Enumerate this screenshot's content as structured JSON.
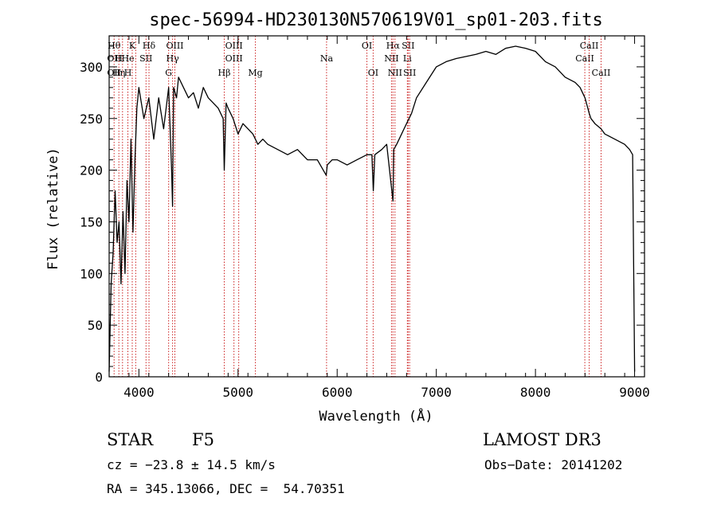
{
  "chart_data": {
    "type": "line",
    "title": "spec-56994-HD230130N570619V01_sp01-203.fits",
    "xlabel": "Wavelength (Å)",
    "ylabel": "Flux (relative)",
    "xlim": [
      3700,
      9100
    ],
    "ylim": [
      0,
      330
    ],
    "x_ticks": [
      4000,
      5000,
      6000,
      7000,
      8000,
      9000
    ],
    "y_ticks": [
      0,
      50,
      100,
      150,
      200,
      250,
      300
    ],
    "series": [
      {
        "name": "flux",
        "x": [
          3700,
          3720,
          3740,
          3760,
          3780,
          3800,
          3820,
          3840,
          3860,
          3880,
          3900,
          3920,
          3940,
          3960,
          3980,
          4000,
          4050,
          4100,
          4150,
          4200,
          4250,
          4300,
          4330,
          4340,
          4350,
          4380,
          4400,
          4450,
          4500,
          4550,
          4600,
          4650,
          4700,
          4750,
          4800,
          4850,
          4861,
          4880,
          4900,
          4950,
          5000,
          5050,
          5100,
          5150,
          5200,
          5250,
          5300,
          5400,
          5500,
          5600,
          5700,
          5800,
          5890,
          5900,
          5950,
          6000,
          6100,
          6200,
          6300,
          6350,
          6365,
          6380,
          6450,
          6500,
          6563,
          6570,
          6600,
          6650,
          6700,
          6750,
          6800,
          6900,
          7000,
          7100,
          7200,
          7300,
          7400,
          7500,
          7600,
          7700,
          7800,
          7900,
          8000,
          8100,
          8200,
          8300,
          8400,
          8450,
          8500,
          8542,
          8560,
          8600,
          8662,
          8700,
          8800,
          8900,
          8950,
          8980,
          9000
        ],
        "values": [
          5,
          90,
          120,
          180,
          130,
          150,
          90,
          160,
          100,
          190,
          150,
          230,
          140,
          210,
          260,
          280,
          250,
          270,
          230,
          270,
          240,
          280,
          200,
          165,
          280,
          270,
          290,
          280,
          270,
          275,
          260,
          280,
          270,
          265,
          260,
          250,
          200,
          265,
          260,
          250,
          235,
          245,
          240,
          235,
          225,
          230,
          225,
          220,
          215,
          220,
          210,
          210,
          195,
          205,
          210,
          210,
          205,
          210,
          215,
          215,
          180,
          215,
          220,
          225,
          170,
          220,
          225,
          235,
          245,
          255,
          270,
          285,
          300,
          305,
          308,
          310,
          312,
          315,
          312,
          318,
          320,
          318,
          315,
          305,
          300,
          290,
          285,
          280,
          270,
          255,
          250,
          245,
          240,
          235,
          230,
          225,
          220,
          215,
          5
        ]
      }
    ],
    "annotations": [
      {
        "wavelength": 3750,
        "lines": [
          "Hθ",
          "OII",
          "OII"
        ]
      },
      {
        "wavelength": 3798,
        "lines": [
          "",
          "H",
          "Hη"
        ]
      },
      {
        "wavelength": 3835,
        "lines": [
          "",
          "",
          ""
        ]
      },
      {
        "wavelength": 3889,
        "lines": [
          "",
          "He",
          "H"
        ]
      },
      {
        "wavelength": 3933,
        "lines": [
          "K",
          "",
          ""
        ]
      },
      {
        "wavelength": 3968,
        "lines": [
          "",
          "",
          ""
        ]
      },
      {
        "wavelength": 4072,
        "lines": [
          "",
          "SII",
          ""
        ]
      },
      {
        "wavelength": 4102,
        "lines": [
          "Hδ",
          "",
          ""
        ]
      },
      {
        "wavelength": 4300,
        "lines": [
          "",
          "",
          "G"
        ]
      },
      {
        "wavelength": 4340,
        "lines": [
          "",
          "Hγ",
          ""
        ]
      },
      {
        "wavelength": 4363,
        "lines": [
          "OIII",
          "",
          ""
        ]
      },
      {
        "wavelength": 4861,
        "lines": [
          "",
          "",
          "Hβ"
        ]
      },
      {
        "wavelength": 4959,
        "lines": [
          "OIII",
          "OIII",
          ""
        ]
      },
      {
        "wavelength": 5007,
        "lines": [
          "",
          "",
          ""
        ]
      },
      {
        "wavelength": 5175,
        "lines": [
          "",
          "",
          "Mg"
        ]
      },
      {
        "wavelength": 5893,
        "lines": [
          "",
          "Na",
          ""
        ]
      },
      {
        "wavelength": 6300,
        "lines": [
          "OI",
          "",
          ""
        ]
      },
      {
        "wavelength": 6363,
        "lines": [
          "",
          "",
          "OI"
        ]
      },
      {
        "wavelength": 6548,
        "lines": [
          "",
          "NII",
          ""
        ]
      },
      {
        "wavelength": 6563,
        "lines": [
          "Hα",
          "",
          ""
        ]
      },
      {
        "wavelength": 6583,
        "lines": [
          "",
          "",
          "NII"
        ]
      },
      {
        "wavelength": 6708,
        "lines": [
          "",
          "Li",
          ""
        ]
      },
      {
        "wavelength": 6716,
        "lines": [
          "SII",
          "",
          ""
        ]
      },
      {
        "wavelength": 6731,
        "lines": [
          "",
          "",
          "SII"
        ]
      },
      {
        "wavelength": 8498,
        "lines": [
          "",
          "CaII",
          ""
        ]
      },
      {
        "wavelength": 8542,
        "lines": [
          "CaII",
          "",
          ""
        ]
      },
      {
        "wavelength": 8662,
        "lines": [
          "",
          "",
          "CaII"
        ]
      }
    ],
    "annotation_color": "#cc2222",
    "line_color": "#000000"
  },
  "info": {
    "class": "STAR",
    "subclass": "F5",
    "survey": "LAMOST DR3",
    "cz": "cz = −23.8 ± 14.5 km/s",
    "obs_date": "Obs−Date: 20141202",
    "coords": "RA = 345.13066, DEC =  54.70351"
  }
}
